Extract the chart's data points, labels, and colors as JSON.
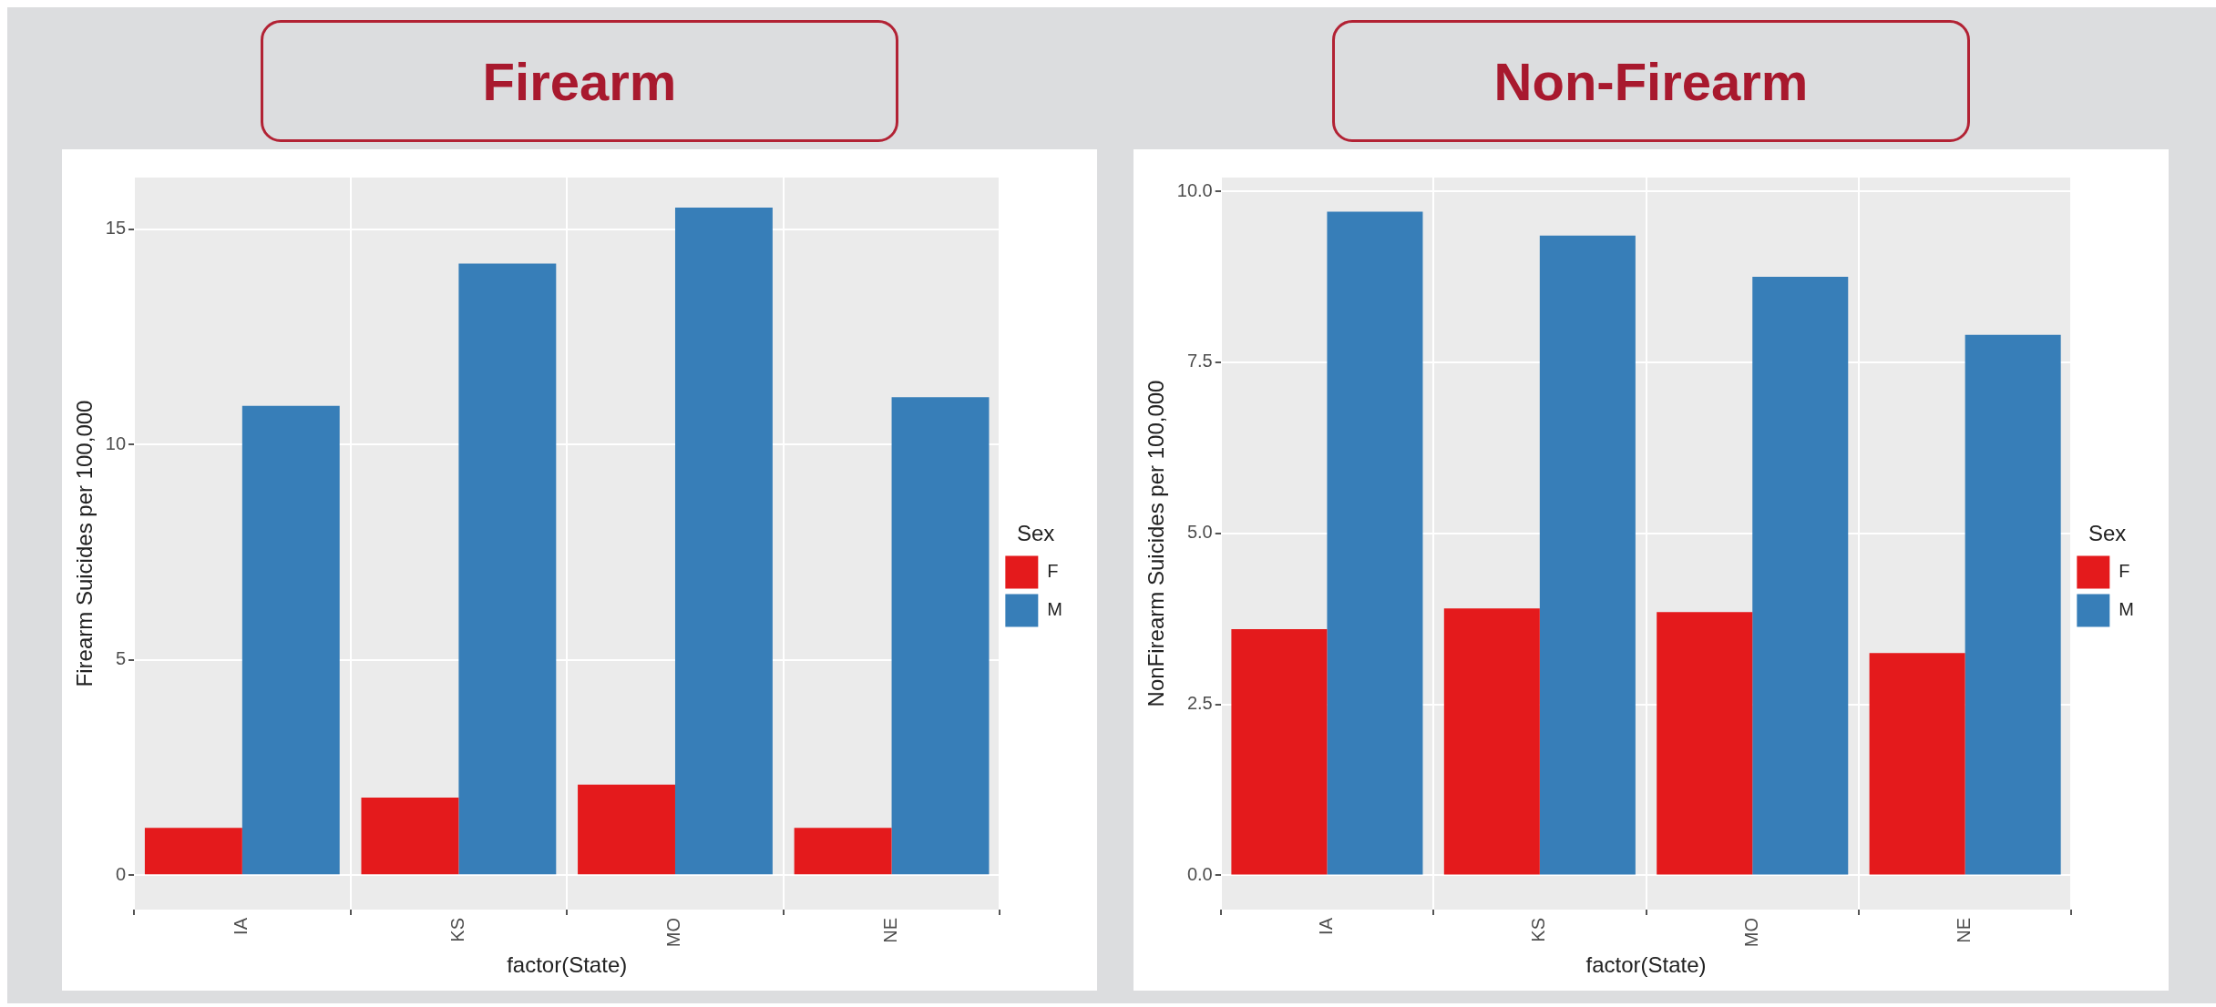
{
  "chart_data": [
    {
      "type": "bar",
      "title": "Firearm",
      "categories": [
        "IA",
        "KS",
        "MO",
        "NE"
      ],
      "xlabel": "factor(State)",
      "ylabel": "Firearm Suicides per 100,000",
      "legend_title": "Sex",
      "legend": "right",
      "grid": true,
      "ylim": [
        -0.8,
        16.2
      ],
      "yticks": [
        0,
        5,
        10,
        15
      ],
      "series": [
        {
          "name": "F",
          "color": "#e41a1c",
          "values": [
            1.1,
            1.8,
            2.1,
            1.1
          ]
        },
        {
          "name": "M",
          "color": "#377eb8",
          "values": [
            10.9,
            14.2,
            15.5,
            11.1
          ]
        }
      ]
    },
    {
      "type": "bar",
      "title": "Non-Firearm",
      "categories": [
        "IA",
        "KS",
        "MO",
        "NE"
      ],
      "xlabel": "factor(State)",
      "ylabel": "NonFirearm Suicides per 100,000",
      "legend_title": "Sex",
      "legend": "right",
      "grid": true,
      "ylim": [
        -0.5,
        10.2
      ],
      "yticks": [
        {
          "value": 0,
          "label": "0.0"
        },
        {
          "value": 2.5,
          "label": "2.5"
        },
        {
          "value": 5,
          "label": "5.0"
        },
        {
          "value": 7.5,
          "label": "7.5"
        },
        {
          "value": 10,
          "label": "10.0"
        }
      ],
      "series": [
        {
          "name": "F",
          "color": "#e41a1c",
          "values": [
            3.6,
            3.9,
            3.85,
            3.25
          ]
        },
        {
          "name": "M",
          "color": "#377eb8",
          "values": [
            9.7,
            9.35,
            8.75,
            7.9
          ]
        }
      ]
    }
  ]
}
